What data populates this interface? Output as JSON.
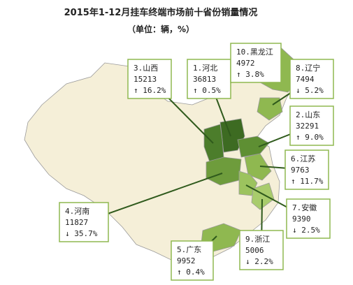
{
  "title": "2015年1-12月挂车终端市场前十省份销量情况",
  "subtitle": "（单位：辆，%）",
  "callouts": [
    {
      "label": "1.河北",
      "volume": "36813",
      "change": "↑ 0.5%"
    },
    {
      "label": "2.山东",
      "volume": "32291",
      "change": "↑ 9.0%"
    },
    {
      "label": "3.山西",
      "volume": "15213",
      "change": "↑ 16.2%"
    },
    {
      "label": "4.河南",
      "volume": "11827",
      "change": "↓ 35.7%"
    },
    {
      "label": "5.广东",
      "volume": "9952",
      "change": "↑ 0.4%"
    },
    {
      "label": "6.江苏",
      "volume": "9763",
      "change": "↑ 11.7%"
    },
    {
      "label": "7.安徽",
      "volume": "9390",
      "change": "↓ 2.5%"
    },
    {
      "label": "8.辽宁",
      "volume": "7494",
      "change": "↓ 5.2%"
    },
    {
      "label": "9.浙江",
      "volume": "5006",
      "change": "↓ 2.2%"
    },
    {
      "label": "10.黑龙江",
      "volume": "4972",
      "change": "↑ 3.8%"
    }
  ]
}
